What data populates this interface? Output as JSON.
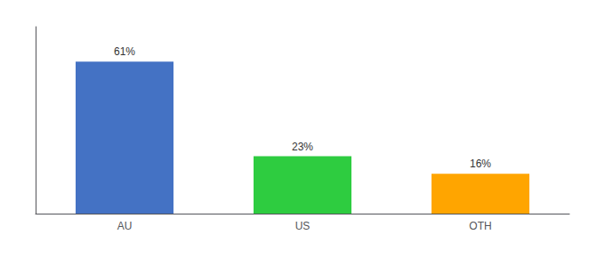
{
  "chart_data": {
    "type": "bar",
    "categories": [
      "AU",
      "US",
      "OTH"
    ],
    "values": [
      61,
      23,
      16
    ],
    "value_labels": [
      "61%",
      "23%",
      "16%"
    ],
    "colors": [
      "#4472C4",
      "#2ECC40",
      "#FFA500"
    ],
    "ylim": [
      0,
      75
    ],
    "grid": false,
    "data_labels": true,
    "tick_labels": "x"
  }
}
